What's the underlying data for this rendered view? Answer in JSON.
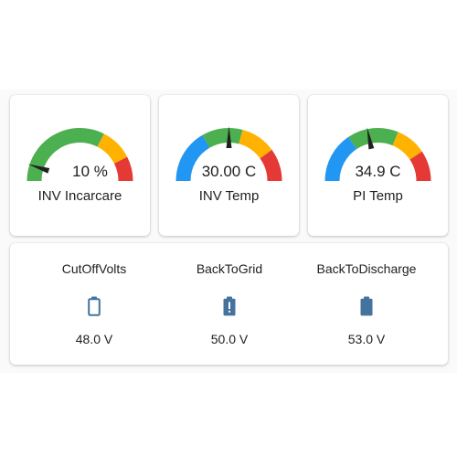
{
  "colors": {
    "green": "#4caf50",
    "yellow": "#ffb300",
    "red": "#e53935",
    "blue": "#2196f3",
    "needle": "#212121",
    "icon": "#44739e"
  },
  "gauges": [
    {
      "value": 10,
      "value_text": "10 %",
      "label": "INV Incarcare",
      "min": 0,
      "max": 100,
      "segments": [
        [
          "green",
          0,
          65
        ],
        [
          "yellow",
          65,
          85
        ],
        [
          "red",
          85,
          100
        ]
      ]
    },
    {
      "value": 30.0,
      "value_text": "30.00 C",
      "label": "INV Temp",
      "min": 0,
      "max": 60,
      "segments": [
        [
          "blue",
          0,
          20
        ],
        [
          "green",
          20,
          35
        ],
        [
          "yellow",
          35,
          48
        ],
        [
          "red",
          48,
          60
        ]
      ]
    },
    {
      "value": 34.9,
      "value_text": "34.9 C",
      "label": "PI Temp",
      "min": 0,
      "max": 80,
      "segments": [
        [
          "blue",
          0,
          25
        ],
        [
          "green",
          25,
          50
        ],
        [
          "yellow",
          50,
          65
        ],
        [
          "red",
          65,
          80
        ]
      ]
    }
  ],
  "entities": [
    {
      "name": "CutOffVolts",
      "value": "48.0 V",
      "icon": "battery-outline-icon"
    },
    {
      "name": "BackToGrid",
      "value": "50.0 V",
      "icon": "battery-alert-icon"
    },
    {
      "name": "BackToDischarge",
      "value": "53.0 V",
      "icon": "battery-icon"
    }
  ]
}
